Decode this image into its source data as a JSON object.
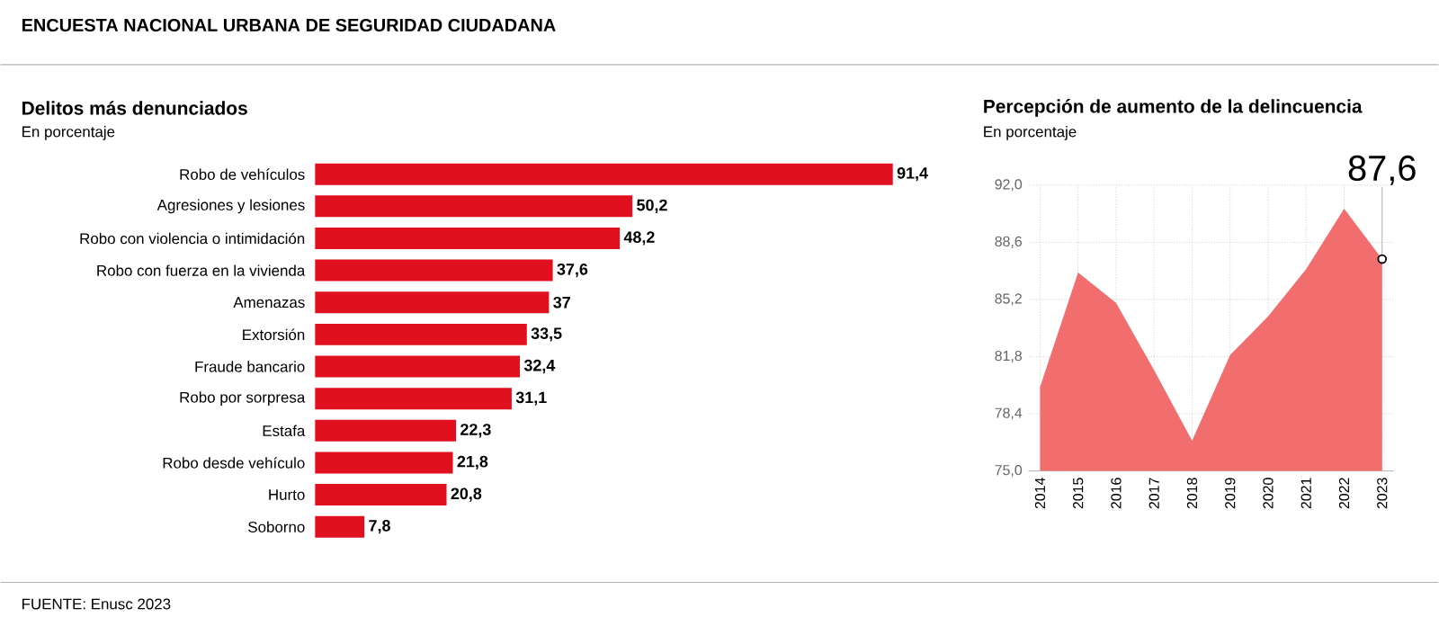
{
  "chart_data": [
    {
      "type": "bar",
      "orientation": "horizontal",
      "title": "Delitos más denunciados",
      "subtitle": "En porcentaje",
      "annotations": [
        "ENCUESTA NACIONAL URBANA DE SEGURIDAD CIUDADANA",
        "FUENTE:  Enusc 2023"
      ],
      "categories": [
        "Robo de vehículos",
        "Agresiones y lesiones",
        "Robo con violencia o intimidación",
        "Robo con fuerza en la vivienda",
        "Amenazas",
        "Extorsión",
        "Fraude bancario",
        "Robo por sorpresa",
        "Estafa",
        "Robo desde vehículo",
        "Hurto",
        "Soborno"
      ],
      "values": [
        91.4,
        50.2,
        48.2,
        37.6,
        37,
        33.5,
        32.4,
        31.1,
        22.3,
        21.8,
        20.8,
        7.8
      ],
      "value_labels": [
        "91,4",
        "50,2",
        "48,2",
        "37,6",
        "37",
        "33,5",
        "32,4",
        "31,1",
        "22,3",
        "21,8",
        "20,8",
        "7,8"
      ],
      "color": "#e0101e"
    },
    {
      "type": "area",
      "title": "Percepción de aumento de la delincuencia",
      "subtitle": "En porcentaje",
      "categories": [
        "2014",
        "2015",
        "2016",
        "2017",
        "2018",
        "2019",
        "2020",
        "2021",
        "2022",
        "2023"
      ],
      "values": [
        80.0,
        86.8,
        85.0,
        81.0,
        76.8,
        81.9,
        84.2,
        87.0,
        90.6,
        87.6
      ],
      "color": "#f26d6d",
      "ylim": [
        75,
        92
      ],
      "yticks": [
        {
          "value": 75,
          "label": "75,0"
        },
        {
          "value": 78.4,
          "label": "78,4"
        },
        {
          "value": 81.8,
          "label": "81,8"
        },
        {
          "value": 85.2,
          "label": "85,2"
        },
        {
          "value": 88.6,
          "label": "88,6"
        },
        {
          "value": 92,
          "label": "92,0"
        }
      ],
      "grid": true,
      "annotations": [
        {
          "text": "87,6",
          "x": "2023",
          "y": 87.6
        }
      ]
    }
  ]
}
